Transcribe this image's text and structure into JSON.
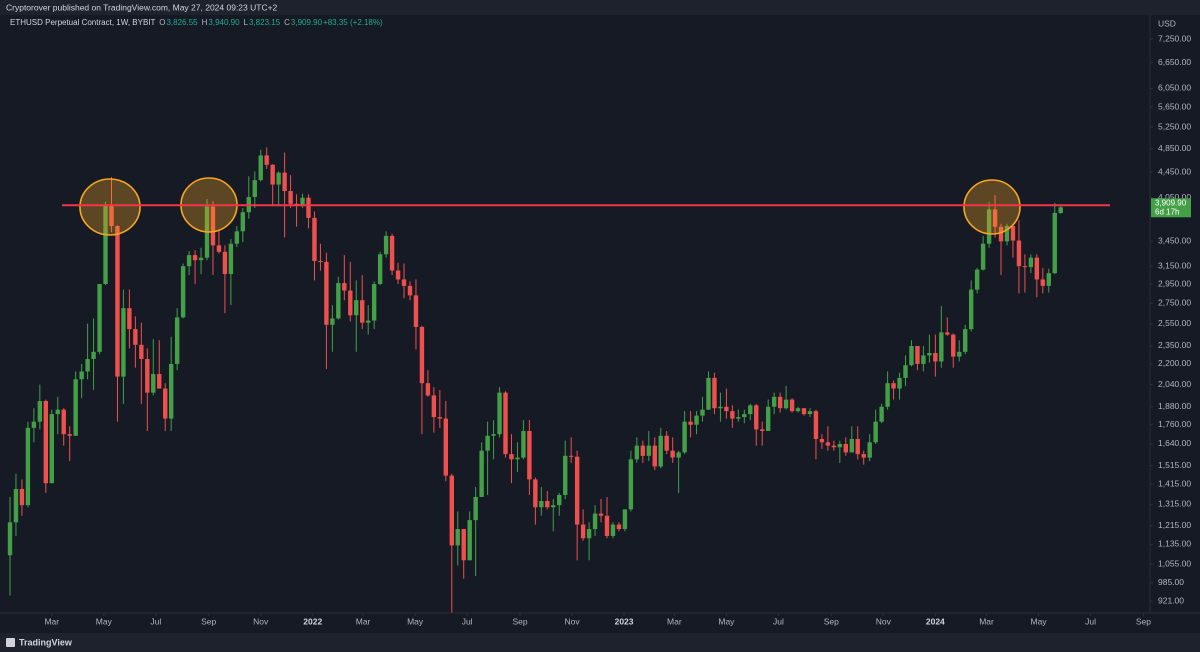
{
  "publisher": "Cryptorover published on TradingView.com, May 27, 2024 09:23 UTC+2",
  "brand": "TradingView",
  "chart_data": {
    "type": "candlestick",
    "title": "ETHUSD Perpetual Contract, 1W, BYBIT",
    "last_bar": [
      {
        "key": "O",
        "value": "3,826.55"
      },
      {
        "key": "H",
        "value": "3,940.90"
      },
      {
        "key": "L",
        "value": "3,823.15"
      },
      {
        "key": "C",
        "value": "3,909.90"
      },
      {
        "key": "",
        "value": "+83.35 (+2.18%)"
      }
    ],
    "currency": "USD",
    "price_label": "3,909.90",
    "countdown": "6d 17h",
    "log_scale": true,
    "grid": false,
    "up_color": "#43a047",
    "down_color": "#f0504d",
    "hline": {
      "value": 3940,
      "color": "#f23645"
    },
    "ylim": [
      885,
      7920
    ],
    "yticks": [
      {
        "value": 7250,
        "label": "7,250.00"
      },
      {
        "value": 6650,
        "label": "6,650.00"
      },
      {
        "value": 6050,
        "label": "6,050.00"
      },
      {
        "value": 5650,
        "label": "5,650.00"
      },
      {
        "value": 5250,
        "label": "5,250.00"
      },
      {
        "value": 4850,
        "label": "4,850.00"
      },
      {
        "value": 4450,
        "label": "4,450.00"
      },
      {
        "value": 4050,
        "label": "4,050.00"
      },
      {
        "value": 3450,
        "label": "3,450.00"
      },
      {
        "value": 3150,
        "label": "3,150.00"
      },
      {
        "value": 2950,
        "label": "2,950.00"
      },
      {
        "value": 2750,
        "label": "2,750.00"
      },
      {
        "value": 2550,
        "label": "2,550.00"
      },
      {
        "value": 2350,
        "label": "2,350.00"
      },
      {
        "value": 2200,
        "label": "2,200.00"
      },
      {
        "value": 2040,
        "label": "2,040.00"
      },
      {
        "value": 1880,
        "label": "1,880.00"
      },
      {
        "value": 1760,
        "label": "1,760.00"
      },
      {
        "value": 1640,
        "label": "1,640.00"
      },
      {
        "value": 1515,
        "label": "1,515.00"
      },
      {
        "value": 1415,
        "label": "1,415.00"
      },
      {
        "value": 1315,
        "label": "1,315.00"
      },
      {
        "value": 1215,
        "label": "1,215.00"
      },
      {
        "value": 1135,
        "label": "1,135.00"
      },
      {
        "value": 1055,
        "label": "1,055.00"
      },
      {
        "value": 985,
        "label": "985.00"
      },
      {
        "value": 921,
        "label": "921.00"
      }
    ],
    "xticks": [
      {
        "value": "2021-03",
        "label": "Mar"
      },
      {
        "value": "2021-05",
        "label": "May"
      },
      {
        "value": "2021-07",
        "label": "Jul"
      },
      {
        "value": "2021-09",
        "label": "Sep"
      },
      {
        "value": "2021-11",
        "label": "Nov"
      },
      {
        "value": "2022-01",
        "label": "2022"
      },
      {
        "value": "2022-03",
        "label": "Mar"
      },
      {
        "value": "2022-05",
        "label": "May"
      },
      {
        "value": "2022-07",
        "label": "Jul"
      },
      {
        "value": "2022-09",
        "label": "Sep"
      },
      {
        "value": "2022-11",
        "label": "Nov"
      },
      {
        "value": "2023-01",
        "label": "2023"
      },
      {
        "value": "2023-03",
        "label": "Mar"
      },
      {
        "value": "2023-05",
        "label": "May"
      },
      {
        "value": "2023-07",
        "label": "Jul"
      },
      {
        "value": "2023-09",
        "label": "Sep"
      },
      {
        "value": "2023-11",
        "label": "Nov"
      },
      {
        "value": "2024-01",
        "label": "2024"
      },
      {
        "value": "2024-03",
        "label": "Mar"
      },
      {
        "value": "2024-05",
        "label": "May"
      },
      {
        "value": "2024-07",
        "label": "Jul"
      },
      {
        "value": "2024-09",
        "label": "Sep"
      }
    ],
    "candles": [
      [
        1090,
        1350,
        940,
        1230
      ],
      [
        1230,
        1470,
        1170,
        1390
      ],
      [
        1390,
        1440,
        1260,
        1310
      ],
      [
        1310,
        1780,
        1300,
        1740
      ],
      [
        1740,
        1870,
        1650,
        1780
      ],
      [
        1780,
        2040,
        1730,
        1920
      ],
      [
        1920,
        1930,
        1370,
        1420
      ],
      [
        1420,
        1860,
        1420,
        1830
      ],
      [
        1830,
        1950,
        1700,
        1860
      ],
      [
        1860,
        1870,
        1630,
        1700
      ],
      [
        1700,
        1750,
        1540,
        1690
      ],
      [
        1690,
        2140,
        1690,
        2080
      ],
      [
        2080,
        2200,
        1940,
        2140
      ],
      [
        2140,
        2550,
        2080,
        2240
      ],
      [
        2240,
        2600,
        2000,
        2300
      ],
      [
        2300,
        2950,
        2280,
        2950
      ],
      [
        2950,
        3990,
        2940,
        3930
      ],
      [
        3930,
        4370,
        3570,
        3650
      ],
      [
        3650,
        3660,
        1780,
        2100
      ],
      [
        2100,
        2890,
        1900,
        2700
      ],
      [
        2700,
        2890,
        2330,
        2500
      ],
      [
        2500,
        2620,
        2170,
        2360
      ],
      [
        2360,
        2560,
        1900,
        2240
      ],
      [
        2240,
        2330,
        1720,
        1980
      ],
      [
        1980,
        2410,
        1960,
        2120
      ],
      [
        2120,
        2400,
        2010,
        2010
      ],
      [
        2010,
        2050,
        1720,
        1800
      ],
      [
        1800,
        2430,
        1720,
        2200
      ],
      [
        2200,
        2700,
        2150,
        2610
      ],
      [
        2610,
        3180,
        2600,
        3150
      ],
      [
        3150,
        3330,
        3050,
        3280
      ],
      [
        3280,
        3340,
        2950,
        3220
      ],
      [
        3220,
        3370,
        3060,
        3250
      ],
      [
        3250,
        4030,
        3220,
        3920
      ],
      [
        3920,
        4000,
        3050,
        3400
      ],
      [
        3400,
        3600,
        3300,
        3320
      ],
      [
        3320,
        3400,
        2650,
        3060
      ],
      [
        3060,
        3480,
        2730,
        3420
      ],
      [
        3420,
        3650,
        3380,
        3580
      ],
      [
        3580,
        3900,
        3440,
        3840
      ],
      [
        3840,
        4380,
        3750,
        4060
      ],
      [
        4060,
        4460,
        3900,
        4320
      ],
      [
        4320,
        4830,
        4300,
        4730
      ],
      [
        4730,
        4870,
        4500,
        4570
      ],
      [
        4570,
        4580,
        3950,
        4250
      ],
      [
        4250,
        4460,
        3950,
        4440
      ],
      [
        4440,
        4780,
        3500,
        4150
      ],
      [
        4150,
        4400,
        3900,
        3960
      ],
      [
        3960,
        4100,
        3640,
        3930
      ],
      [
        3930,
        4110,
        3900,
        4050
      ],
      [
        4050,
        4100,
        3620,
        3760
      ],
      [
        3760,
        3850,
        2990,
        3210
      ],
      [
        3210,
        3420,
        3100,
        3200
      ],
      [
        3200,
        3310,
        2160,
        2540
      ],
      [
        2540,
        2730,
        2300,
        2600
      ],
      [
        2600,
        3030,
        2590,
        2960
      ],
      [
        2960,
        3280,
        2780,
        2880
      ],
      [
        2880,
        3200,
        2570,
        2630
      ],
      [
        2630,
        2990,
        2300,
        2780
      ],
      [
        2780,
        3050,
        2500,
        2560
      ],
      [
        2560,
        2730,
        2450,
        2580
      ],
      [
        2580,
        2980,
        2500,
        2950
      ],
      [
        2950,
        3320,
        2940,
        3290
      ],
      [
        3290,
        3580,
        3250,
        3520
      ],
      [
        3520,
        3550,
        3050,
        3100
      ],
      [
        3100,
        3190,
        2950,
        3000
      ],
      [
        3000,
        3180,
        2800,
        2930
      ],
      [
        2930,
        2980,
        2780,
        2830
      ],
      [
        2830,
        3000,
        2320,
        2520
      ],
      [
        2520,
        2530,
        1700,
        2050
      ],
      [
        2050,
        2150,
        1950,
        1960
      ],
      [
        1960,
        2020,
        1710,
        1810
      ],
      [
        1810,
        2000,
        1740,
        1800
      ],
      [
        1800,
        1920,
        1430,
        1460
      ],
      [
        1460,
        1470,
        880,
        1130
      ],
      [
        1130,
        1280,
        1050,
        1200
      ],
      [
        1200,
        1200,
        1000,
        1070
      ],
      [
        1070,
        1280,
        1070,
        1240
      ],
      [
        1240,
        1400,
        1010,
        1350
      ],
      [
        1350,
        1650,
        1350,
        1600
      ],
      [
        1600,
        1780,
        1360,
        1690
      ],
      [
        1690,
        1790,
        1550,
        1700
      ],
      [
        1700,
        2020,
        1680,
        1980
      ],
      [
        1980,
        1990,
        1560,
        1580
      ],
      [
        1580,
        1700,
        1420,
        1550
      ],
      [
        1550,
        1650,
        1480,
        1560
      ],
      [
        1560,
        1790,
        1550,
        1720
      ],
      [
        1720,
        1790,
        1360,
        1440
      ],
      [
        1440,
        1450,
        1220,
        1300
      ],
      [
        1300,
        1400,
        1260,
        1330
      ],
      [
        1330,
        1380,
        1290,
        1300
      ],
      [
        1300,
        1340,
        1190,
        1310
      ],
      [
        1310,
        1370,
        1260,
        1360
      ],
      [
        1360,
        1660,
        1340,
        1570
      ],
      [
        1570,
        1680,
        1530,
        1565
      ],
      [
        1565,
        1600,
        1070,
        1220
      ],
      [
        1220,
        1290,
        1150,
        1160
      ],
      [
        1160,
        1230,
        1070,
        1200
      ],
      [
        1200,
        1310,
        1170,
        1270
      ],
      [
        1270,
        1340,
        1230,
        1260
      ],
      [
        1260,
        1350,
        1160,
        1170
      ],
      [
        1170,
        1230,
        1160,
        1220
      ],
      [
        1220,
        1230,
        1190,
        1200
      ],
      [
        1200,
        1290,
        1190,
        1290
      ],
      [
        1290,
        1600,
        1280,
        1550
      ],
      [
        1550,
        1680,
        1530,
        1630
      ],
      [
        1630,
        1660,
        1530,
        1570
      ],
      [
        1570,
        1720,
        1540,
        1630
      ],
      [
        1630,
        1680,
        1490,
        1510
      ],
      [
        1510,
        1740,
        1500,
        1690
      ],
      [
        1690,
        1720,
        1580,
        1600
      ],
      [
        1600,
        1680,
        1530,
        1560
      ],
      [
        1560,
        1600,
        1370,
        1590
      ],
      [
        1590,
        1850,
        1580,
        1780
      ],
      [
        1780,
        1850,
        1680,
        1760
      ],
      [
        1760,
        1850,
        1700,
        1820
      ],
      [
        1820,
        1950,
        1780,
        1860
      ],
      [
        1860,
        2140,
        1860,
        2090
      ],
      [
        2090,
        2130,
        1830,
        1870
      ],
      [
        1870,
        1980,
        1780,
        1880
      ],
      [
        1880,
        2010,
        1800,
        1850
      ],
      [
        1850,
        1890,
        1740,
        1800
      ],
      [
        1800,
        1860,
        1780,
        1810
      ],
      [
        1810,
        1860,
        1770,
        1830
      ],
      [
        1830,
        1900,
        1790,
        1890
      ],
      [
        1890,
        1900,
        1630,
        1730
      ],
      [
        1730,
        1780,
        1630,
        1720
      ],
      [
        1720,
        1930,
        1720,
        1880
      ],
      [
        1880,
        1980,
        1830,
        1950
      ],
      [
        1950,
        1980,
        1840,
        1870
      ],
      [
        1870,
        2030,
        1860,
        1930
      ],
      [
        1930,
        1940,
        1840,
        1850
      ],
      [
        1850,
        1880,
        1840,
        1870
      ],
      [
        1870,
        1870,
        1820,
        1830
      ],
      [
        1830,
        1870,
        1810,
        1850
      ],
      [
        1850,
        1860,
        1550,
        1670
      ],
      [
        1670,
        1700,
        1610,
        1650
      ],
      [
        1650,
        1750,
        1600,
        1630
      ],
      [
        1630,
        1660,
        1600,
        1620
      ],
      [
        1620,
        1660,
        1530,
        1640
      ],
      [
        1640,
        1680,
        1570,
        1590
      ],
      [
        1590,
        1750,
        1590,
        1670
      ],
      [
        1670,
        1750,
        1550,
        1580
      ],
      [
        1580,
        1600,
        1520,
        1560
      ],
      [
        1560,
        1700,
        1540,
        1650
      ],
      [
        1650,
        1860,
        1640,
        1780
      ],
      [
        1780,
        1900,
        1770,
        1880
      ],
      [
        1880,
        2140,
        1860,
        2050
      ],
      [
        2050,
        2070,
        1930,
        2010
      ],
      [
        2010,
        2130,
        1930,
        2090
      ],
      [
        2090,
        2270,
        2030,
        2190
      ],
      [
        2190,
        2400,
        2180,
        2350
      ],
      [
        2350,
        2350,
        2150,
        2200
      ],
      [
        2200,
        2350,
        2140,
        2270
      ],
      [
        2270,
        2450,
        2210,
        2290
      ],
      [
        2290,
        2450,
        2100,
        2220
      ],
      [
        2220,
        2720,
        2170,
        2470
      ],
      [
        2470,
        2610,
        2440,
        2450
      ],
      [
        2450,
        2460,
        2170,
        2260
      ],
      [
        2260,
        2400,
        2220,
        2300
      ],
      [
        2300,
        2540,
        2280,
        2500
      ],
      [
        2500,
        2990,
        2480,
        2890
      ],
      [
        2890,
        3130,
        2850,
        3110
      ],
      [
        3110,
        3520,
        3100,
        3420
      ],
      [
        3420,
        3990,
        3370,
        3880
      ],
      [
        3880,
        4090,
        3500,
        3640
      ],
      [
        3640,
        3680,
        3050,
        3450
      ],
      [
        3450,
        3680,
        3400,
        3650
      ],
      [
        3650,
        3660,
        3250,
        3460
      ],
      [
        3460,
        3730,
        2850,
        3150
      ],
      [
        3150,
        3290,
        2860,
        3140
      ],
      [
        3140,
        3290,
        3070,
        3250
      ],
      [
        3250,
        3290,
        2810,
        3000
      ],
      [
        3000,
        3130,
        2850,
        2930
      ],
      [
        2930,
        3120,
        2860,
        3070
      ],
      [
        3070,
        3975,
        3060,
        3830
      ],
      [
        3826.55,
        3940.9,
        3823.15,
        3909.9
      ]
    ]
  }
}
